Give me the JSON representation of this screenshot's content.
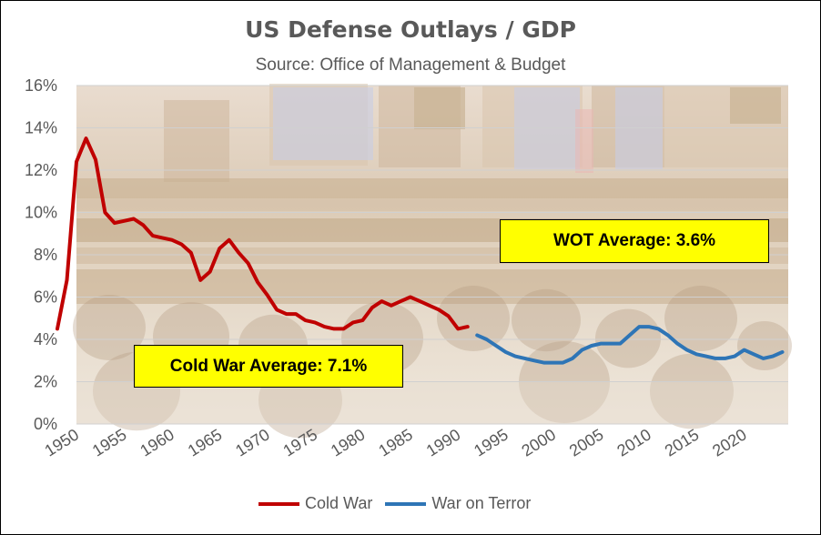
{
  "chart_data": {
    "type": "line",
    "title": "US Defense Outlays / GDP",
    "subtitle": "Source:  Office of Management & Budget",
    "xlabel": "",
    "ylabel": "",
    "xlim": [
      1950,
      2024
    ],
    "ylim": [
      0,
      16
    ],
    "x_ticks": [
      "1950",
      "1955",
      "1960",
      "1965",
      "1970",
      "1975",
      "1980",
      "1985",
      "1990",
      "1995",
      "2000",
      "2005",
      "2010",
      "2015",
      "2020"
    ],
    "y_ticks": [
      "0%",
      "2%",
      "4%",
      "6%",
      "8%",
      "10%",
      "12%",
      "14%",
      "16%"
    ],
    "grid": true,
    "legend_position": "bottom",
    "background_image": "congressional-hearing-room-photo",
    "series": [
      {
        "name": "Cold War",
        "color": "#c00000",
        "x": [
          1948,
          1949,
          1950,
          1951,
          1952,
          1953,
          1954,
          1955,
          1956,
          1957,
          1958,
          1959,
          1960,
          1961,
          1962,
          1963,
          1964,
          1965,
          1966,
          1967,
          1968,
          1969,
          1970,
          1971,
          1972,
          1973,
          1974,
          1975,
          1976,
          1977,
          1978,
          1979,
          1980,
          1981,
          1982,
          1983,
          1984,
          1985,
          1986,
          1987,
          1988,
          1989,
          1990,
          1991
        ],
        "values": [
          4.5,
          6.8,
          12.4,
          13.5,
          12.5,
          10.0,
          9.5,
          9.6,
          9.7,
          9.4,
          8.9,
          8.8,
          8.7,
          8.5,
          8.1,
          6.8,
          7.2,
          8.3,
          8.7,
          8.1,
          7.6,
          6.7,
          6.1,
          5.4,
          5.2,
          5.2,
          4.9,
          4.8,
          4.6,
          4.5,
          4.5,
          4.8,
          4.9,
          5.5,
          5.8,
          5.6,
          5.8,
          6.0,
          5.8,
          5.6,
          5.4,
          5.1,
          4.5,
          4.6
        ]
      },
      {
        "name": "War on Terror",
        "color": "#2e75b6",
        "x": [
          1992,
          1993,
          1994,
          1995,
          1996,
          1997,
          1998,
          1999,
          2000,
          2001,
          2002,
          2003,
          2004,
          2005,
          2006,
          2007,
          2008,
          2009,
          2010,
          2011,
          2012,
          2013,
          2014,
          2015,
          2016,
          2017,
          2018,
          2019,
          2020,
          2021,
          2022,
          2023,
          2024
        ],
        "values": [
          4.2,
          4.0,
          3.7,
          3.4,
          3.2,
          3.1,
          3.0,
          2.9,
          2.9,
          2.9,
          3.1,
          3.5,
          3.7,
          3.8,
          3.8,
          3.8,
          4.2,
          4.6,
          4.6,
          4.5,
          4.2,
          3.8,
          3.5,
          3.3,
          3.2,
          3.1,
          3.1,
          3.2,
          3.5,
          3.3,
          3.1,
          3.2,
          3.4
        ]
      }
    ],
    "annotations": [
      {
        "id": "cold-war-average",
        "text": "Cold War Average:  7.1%"
      },
      {
        "id": "wot-average",
        "text": "WOT Average:  3.6%"
      }
    ]
  }
}
